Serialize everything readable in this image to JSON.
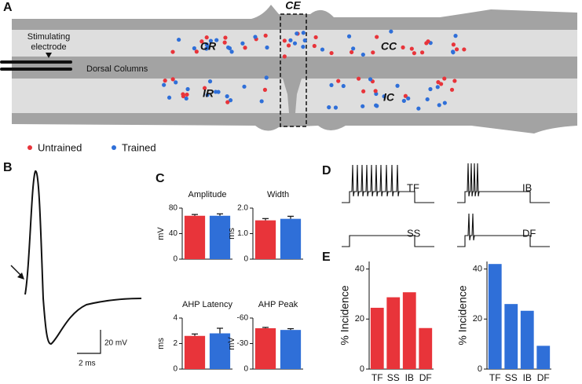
{
  "panel_labels": [
    "A",
    "B",
    "C",
    "D",
    "E"
  ],
  "diagram": {
    "region_labels": [
      "CE",
      "CR",
      "CC",
      "IR",
      "IC"
    ],
    "electrode_label": [
      "Stimulating",
      "electrode"
    ],
    "columns_label": "Dorsal Columns",
    "legend": [
      {
        "name": "Untrained",
        "color": "#e8343a"
      },
      {
        "name": "Trained",
        "color": "#2f6fd8"
      }
    ]
  },
  "trace_scale": {
    "y": "20 mV",
    "x": "2 ms"
  },
  "firing_patterns": [
    "TF",
    "IB",
    "SS",
    "DF"
  ],
  "chart_data": [
    {
      "type": "bar",
      "title": "Amplitude",
      "ylabel": "mV",
      "categories": [
        null,
        null
      ],
      "values": [
        68,
        68
      ],
      "errors": [
        2,
        3
      ],
      "colors": [
        "#e8343a",
        "#2f6fd8"
      ],
      "ylim": [
        0,
        80
      ],
      "yticks": [
        0,
        40,
        80
      ]
    },
    {
      "type": "bar",
      "title": "Width",
      "ylabel": "ms",
      "categories": [
        null,
        null
      ],
      "values": [
        1.52,
        1.58
      ],
      "errors": [
        0.07,
        0.1
      ],
      "colors": [
        "#e8343a",
        "#2f6fd8"
      ],
      "ylim": [
        0,
        2
      ],
      "yticks": [
        0,
        {
          "value": 1,
          "label": "1.0"
        },
        {
          "value": 2,
          "label": "2.0"
        }
      ]
    },
    {
      "type": "bar",
      "title": "AHP Latency",
      "ylabel": "ms",
      "categories": [
        null,
        null
      ],
      "values": [
        2.6,
        2.8
      ],
      "errors": [
        0.15,
        0.4
      ],
      "colors": [
        "#e8343a",
        "#2f6fd8"
      ],
      "ylim": [
        0,
        4
      ],
      "yticks": [
        0,
        2,
        4
      ]
    },
    {
      "type": "bar",
      "title": "AHP Peak",
      "ylabel": "mV",
      "categories": [
        null,
        null
      ],
      "values": [
        -48,
        -46
      ],
      "errors": [
        1,
        1.5
      ],
      "colors": [
        "#e8343a",
        "#2f6fd8"
      ],
      "ylim": [
        0,
        -60
      ],
      "yticks": [
        0,
        -30,
        -60
      ]
    },
    {
      "type": "bar",
      "ylabel": "% Incidence",
      "categories": [
        "TF",
        "SS",
        "IB",
        "DF"
      ],
      "values": [
        24.5,
        28.7,
        30.7,
        16.4
      ],
      "color": "#e8343a",
      "ylim": [
        0,
        43
      ],
      "yticks": [
        0,
        20,
        40
      ]
    },
    {
      "type": "bar",
      "ylabel": "% Incidence",
      "categories": [
        "TF",
        "SS",
        "IB",
        "DF"
      ],
      "values": [
        42,
        26,
        23.3,
        9.3
      ],
      "color": "#2f6fd8",
      "ylim": [
        0,
        43
      ],
      "yticks": [
        0,
        20,
        40
      ]
    }
  ]
}
